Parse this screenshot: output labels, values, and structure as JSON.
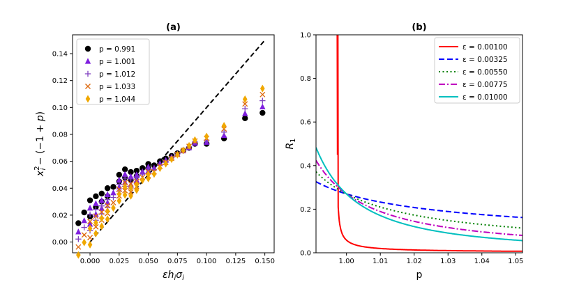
{
  "chart_data": [
    {
      "panel": "(a)",
      "type": "scatter",
      "title": "(a)",
      "xlabel": "εh_iσ_i",
      "ylabel": "x_i² − (−1 + p)",
      "xlim": [
        -0.015,
        0.158
      ],
      "ylim": [
        -0.008,
        0.154
      ],
      "xticks": [
        0.0,
        0.025,
        0.05,
        0.075,
        0.1,
        0.125,
        0.15
      ],
      "xtick_labels": [
        "0.000",
        "0.025",
        "0.050",
        "0.075",
        "0.100",
        "0.125",
        "0.150"
      ],
      "yticks": [
        0.0,
        0.02,
        0.04,
        0.06,
        0.08,
        0.1,
        0.12,
        0.14
      ],
      "ytick_labels": [
        "0.00",
        "0.02",
        "0.04",
        "0.06",
        "0.08",
        "0.10",
        "0.12",
        "0.14"
      ],
      "reference_line": {
        "x": [
          0.0,
          0.15
        ],
        "y": [
          0.0,
          0.15
        ],
        "style": "dashed",
        "color": "#000000"
      },
      "legend_position": "top-left",
      "series": [
        {
          "name": "p = 0.991",
          "marker": "circle",
          "color": "#000000",
          "y_offset": 0.0
        },
        {
          "name": "p = 1.001",
          "marker": "triangle",
          "color": "#7f1fdf",
          "y_offset": -0.0025
        },
        {
          "name": "p = 1.012",
          "marker": "plus",
          "color": "#7f3fbf",
          "y_offset": -0.004
        },
        {
          "name": "p = 1.033",
          "marker": "x",
          "color": "#dd6a10",
          "y_offset": -0.006
        },
        {
          "name": "p = 1.044",
          "marker": "diamond",
          "color": "#f0a800",
          "y_offset": -0.008
        }
      ],
      "x_values": [
        -0.01,
        -0.005,
        0.0,
        0.0,
        0.005,
        0.005,
        0.01,
        0.01,
        0.015,
        0.015,
        0.02,
        0.025,
        0.025,
        0.03,
        0.03,
        0.035,
        0.035,
        0.04,
        0.04,
        0.045,
        0.05,
        0.05,
        0.055,
        0.06,
        0.065,
        0.07,
        0.075,
        0.08,
        0.085,
        0.09,
        0.1,
        0.115,
        0.133,
        0.148
      ],
      "base_y_values": [
        0.014,
        0.022,
        0.019,
        0.031,
        0.026,
        0.034,
        0.03,
        0.036,
        0.034,
        0.04,
        0.041,
        0.045,
        0.05,
        0.048,
        0.054,
        0.046,
        0.052,
        0.053,
        0.049,
        0.055,
        0.055,
        0.058,
        0.057,
        0.06,
        0.062,
        0.064,
        0.066,
        0.068,
        0.07,
        0.073,
        0.073,
        0.077,
        0.092,
        0.096
      ]
    },
    {
      "panel": "(b)",
      "type": "line",
      "title": "(b)",
      "xlabel": "p",
      "ylabel": "R_1",
      "xlim": [
        0.991,
        1.052
      ],
      "ylim": [
        0.0,
        1.0
      ],
      "xticks": [
        1.0,
        1.01,
        1.02,
        1.03,
        1.04,
        1.05
      ],
      "xtick_labels": [
        "1.00",
        "1.01",
        "1.02",
        "1.03",
        "1.04",
        "1.05"
      ],
      "yticks": [
        0.0,
        0.2,
        0.4,
        0.6,
        0.8,
        1.0
      ],
      "ytick_labels": [
        "0.0",
        "0.2",
        "0.4",
        "0.6",
        "0.8",
        "1.0"
      ],
      "legend_position": "top-right",
      "series": [
        {
          "name": "ε = 0.00100",
          "color": "#ff0000",
          "style": "solid",
          "eps": 0.001
        },
        {
          "name": "ε = 0.00325",
          "color": "#0000ff",
          "style": "dashed",
          "eps": 0.00325
        },
        {
          "name": "ε = 0.00550",
          "color": "#008000",
          "style": "dotted",
          "eps": 0.0055
        },
        {
          "name": "ε = 0.00775",
          "color": "#bf00bf",
          "style": "dashdot",
          "eps": 0.00775
        },
        {
          "name": "ε = 0.01000",
          "color": "#00bfbf",
          "style": "solid",
          "eps": 0.01
        }
      ]
    }
  ]
}
